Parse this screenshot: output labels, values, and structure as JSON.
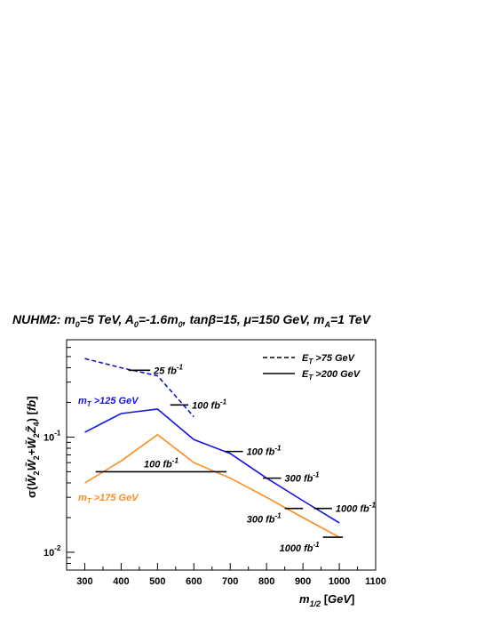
{
  "chart_data": {
    "type": "line",
    "title": "NUHM2: m0=5 TeV, A0=-1.6m0, tanβ=15, μ=150 GeV, mA=1 TeV",
    "xlabel": "m1/2 [GeV]",
    "ylabel": "σ(W̃2 W̃2 + W̃2 Z̃4) [fb]",
    "xlim": [
      250,
      1100
    ],
    "ylim": [
      0.007,
      0.7
    ],
    "yscale": "log",
    "x_ticks": [
      "300",
      "400",
      "500",
      "600",
      "700",
      "800",
      "900",
      "1000",
      "1100"
    ],
    "y_ticks": [
      {
        "base": "10",
        "exp": "-2"
      },
      {
        "base": "10",
        "exp": "-1"
      }
    ],
    "series": [
      {
        "name": "ET>75 GeV",
        "style": "dashed",
        "color": "#1515c8",
        "x": [
          300,
          400,
          500,
          600
        ],
        "y": [
          0.48,
          0.4,
          0.34,
          0.15
        ]
      },
      {
        "name": "mT>125 GeV",
        "style": "solid",
        "color": "#1515e0",
        "x": [
          300,
          400,
          500,
          600,
          700,
          800,
          900,
          1000
        ],
        "y": [
          0.11,
          0.16,
          0.175,
          0.095,
          0.072,
          0.044,
          0.028,
          0.018
        ]
      },
      {
        "name": "mT>175 GeV",
        "style": "solid",
        "color": "#ff8c1a",
        "x": [
          300,
          400,
          500,
          600,
          700,
          800,
          900,
          1000
        ],
        "y": [
          0.04,
          0.062,
          0.105,
          0.06,
          0.044,
          0.03,
          0.02,
          0.0135
        ]
      }
    ],
    "luminosity_marks": [
      {
        "label": "25 fb",
        "sup": "-1",
        "color": "#000000",
        "x1": 420,
        "x2": 480,
        "y": 0.38
      },
      {
        "label": "100 fb",
        "sup": "-1",
        "color": "#000000",
        "x1": 535,
        "x2": 585,
        "y": 0.19
      },
      {
        "label": "100 fb",
        "sup": "-1",
        "color": "#000000",
        "x1": 685,
        "x2": 735,
        "y": 0.075
      },
      {
        "label": "300 fb",
        "sup": "-1",
        "color": "#000000",
        "x1": 790,
        "x2": 840,
        "y": 0.044
      },
      {
        "label": "1000 fb",
        "sup": "-1",
        "color": "#000000",
        "x1": 930,
        "x2": 980,
        "y": 0.024
      },
      {
        "label": "100 fb",
        "sup": "-1",
        "color": "#000000",
        "x1": 330,
        "x2": 690,
        "y": 0.05
      },
      {
        "label": "300 fb",
        "sup": "-1",
        "color": "#000000",
        "x1": 850,
        "x2": 900,
        "y": 0.024
      },
      {
        "label": "1000 fb",
        "sup": "-1",
        "color": "#000000",
        "x1": 955,
        "x2": 1010,
        "y": 0.0135
      }
    ],
    "legend": {
      "position": "top-right",
      "entries": [
        {
          "label": "ET>75 GeV",
          "style": "dashed"
        },
        {
          "label": "ET>200 GeV",
          "style": "solid"
        }
      ]
    },
    "annotations": [
      {
        "text": "mT>125 GeV",
        "color": "#1515e0"
      },
      {
        "text": "mT>175 GeV",
        "color": "#ff8c1a"
      }
    ],
    "grid": false
  }
}
